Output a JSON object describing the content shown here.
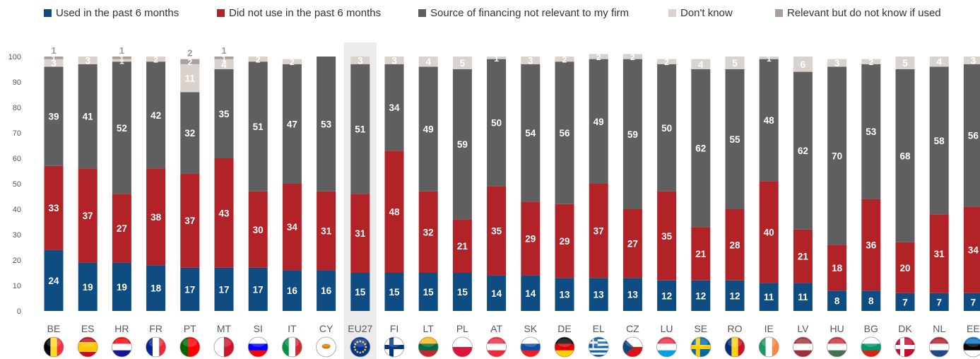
{
  "chart_data": {
    "type": "bar",
    "stacked": true,
    "title": "",
    "xlabel": "",
    "ylabel": "",
    "ylim": [
      0,
      100
    ],
    "yticks": [
      0,
      10,
      20,
      30,
      40,
      50,
      60,
      70,
      80,
      90,
      100
    ],
    "grid": false,
    "legend_position": "top",
    "highlighted_category": "EU27",
    "categories": [
      "BE",
      "ES",
      "HR",
      "FR",
      "PT",
      "MT",
      "SI",
      "IT",
      "CY",
      "EU27",
      "FI",
      "LT",
      "PL",
      "AT",
      "SK",
      "DE",
      "EL",
      "CZ",
      "LU",
      "SE",
      "RO",
      "IE",
      "LV",
      "HU",
      "BG",
      "DK",
      "NL",
      "EE"
    ],
    "series": [
      {
        "name": "Used in the past 6 months",
        "color": "#0f4c81",
        "values": [
          24,
          19,
          19,
          18,
          17,
          17,
          17,
          16,
          16,
          15,
          15,
          15,
          15,
          14,
          14,
          13,
          13,
          13,
          12,
          12,
          12,
          11,
          11,
          8,
          8,
          7,
          7,
          7
        ]
      },
      {
        "name": "Did not use in the past 6 months",
        "color": "#b22328",
        "values": [
          33,
          37,
          27,
          38,
          37,
          43,
          30,
          34,
          31,
          31,
          48,
          32,
          21,
          35,
          29,
          29,
          37,
          27,
          35,
          21,
          28,
          40,
          21,
          18,
          36,
          20,
          31,
          34
        ]
      },
      {
        "name": "Source of financing not relevant to my firm",
        "color": "#5f5f5f",
        "values": [
          39,
          41,
          52,
          42,
          32,
          35,
          51,
          47,
          53,
          51,
          34,
          49,
          59,
          50,
          54,
          56,
          49,
          59,
          50,
          62,
          55,
          48,
          62,
          70,
          53,
          68,
          58,
          56
        ]
      },
      {
        "name": "Don't know",
        "color": "#d9d2cd",
        "values": [
          3,
          3,
          1,
          2,
          11,
          4,
          2,
          2,
          0,
          3,
          3,
          4,
          5,
          1,
          3,
          2,
          2,
          2,
          2,
          4,
          5,
          1,
          6,
          3,
          2,
          5,
          4,
          3
        ]
      },
      {
        "name": "Relevant but do not know if used",
        "color": "#ab9f98",
        "values": [
          1,
          0,
          1,
          0,
          2,
          1,
          0,
          0,
          0,
          0,
          0,
          0,
          0,
          0,
          0,
          0,
          0,
          0,
          0,
          0,
          0,
          0,
          0,
          0,
          0,
          0,
          0,
          0
        ]
      }
    ],
    "flag_icons": [
      "belgium-flag-icon",
      "spain-flag-icon",
      "croatia-flag-icon",
      "france-flag-icon",
      "portugal-flag-icon",
      "malta-flag-icon",
      "slovenia-flag-icon",
      "italy-flag-icon",
      "cyprus-flag-icon",
      "eu-flag-icon",
      "finland-flag-icon",
      "lithuania-flag-icon",
      "poland-flag-icon",
      "austria-flag-icon",
      "slovakia-flag-icon",
      "germany-flag-icon",
      "greece-flag-icon",
      "czechia-flag-icon",
      "luxembourg-flag-icon",
      "sweden-flag-icon",
      "romania-flag-icon",
      "ireland-flag-icon",
      "latvia-flag-icon",
      "hungary-flag-icon",
      "bulgaria-flag-icon",
      "denmark-flag-icon",
      "netherlands-flag-icon",
      "estonia-flag-icon"
    ]
  }
}
